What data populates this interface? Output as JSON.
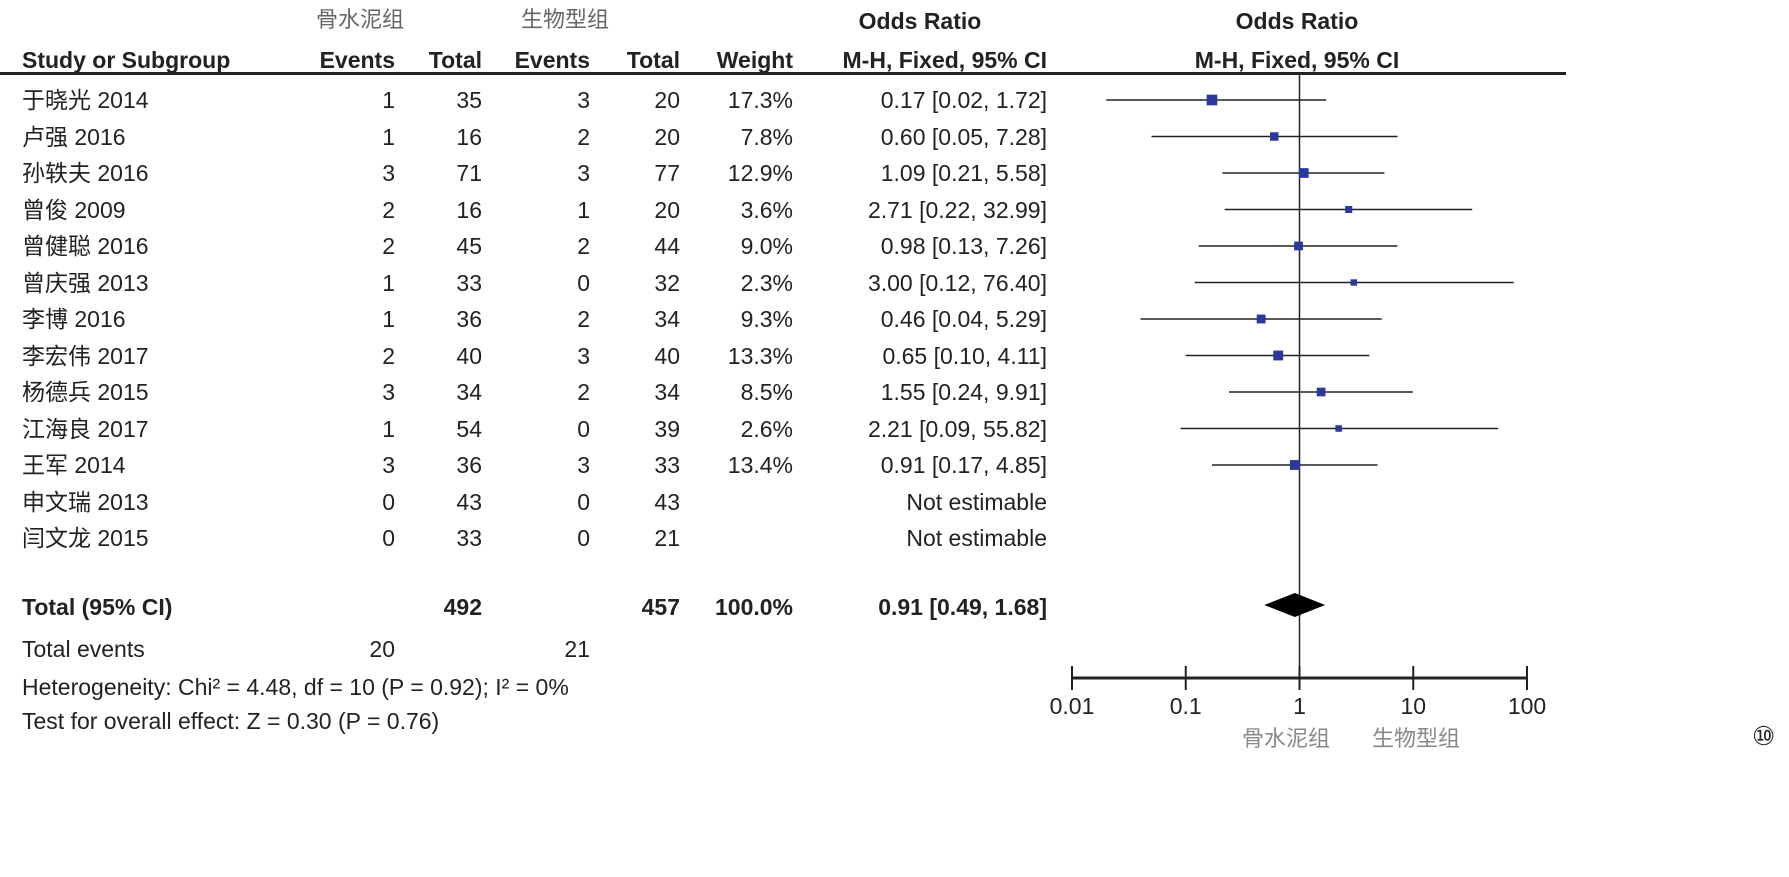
{
  "chart_data": {
    "type": "forest",
    "title": "Odds Ratio",
    "subtitle": "M-H, Fixed, 95% CI",
    "group_labels": [
      "骨水泥组",
      "生物型组"
    ],
    "columns": [
      "Study or Subgroup",
      "Events",
      "Total",
      "Events",
      "Total",
      "Weight",
      "M-H, Fixed, 95% CI"
    ],
    "or_header": "Odds Ratio",
    "x_scale": "log",
    "xlim": [
      0.01,
      100
    ],
    "x_ticks": [
      "0.01",
      "0.1",
      "1",
      "10",
      "100"
    ],
    "x_footer": [
      "骨水泥组",
      "生物型组"
    ],
    "studies": [
      {
        "name": "于晓光 2014",
        "e1": "1",
        "t1": "35",
        "e2": "3",
        "t2": "20",
        "weight": "17.3%",
        "ci_text": "0.17 [0.02, 1.72]",
        "or": 0.17,
        "lo": 0.02,
        "hi": 1.72,
        "w": 17.3
      },
      {
        "name": "卢强 2016",
        "e1": "1",
        "t1": "16",
        "e2": "2",
        "t2": "20",
        "weight": "7.8%",
        "ci_text": "0.60 [0.05, 7.28]",
        "or": 0.6,
        "lo": 0.05,
        "hi": 7.28,
        "w": 7.8
      },
      {
        "name": "孙轶夫 2016",
        "e1": "3",
        "t1": "71",
        "e2": "3",
        "t2": "77",
        "weight": "12.9%",
        "ci_text": "1.09 [0.21, 5.58]",
        "or": 1.09,
        "lo": 0.21,
        "hi": 5.58,
        "w": 12.9
      },
      {
        "name": "曾俊 2009",
        "e1": "2",
        "t1": "16",
        "e2": "1",
        "t2": "20",
        "weight": "3.6%",
        "ci_text": "2.71 [0.22, 32.99]",
        "or": 2.71,
        "lo": 0.22,
        "hi": 32.99,
        "w": 3.6
      },
      {
        "name": "曾健聪 2016",
        "e1": "2",
        "t1": "45",
        "e2": "2",
        "t2": "44",
        "weight": "9.0%",
        "ci_text": "0.98 [0.13, 7.26]",
        "or": 0.98,
        "lo": 0.13,
        "hi": 7.26,
        "w": 9.0
      },
      {
        "name": "曾庆强 2013",
        "e1": "1",
        "t1": "33",
        "e2": "0",
        "t2": "32",
        "weight": "2.3%",
        "ci_text": "3.00 [0.12, 76.40]",
        "or": 3.0,
        "lo": 0.12,
        "hi": 76.4,
        "w": 2.3
      },
      {
        "name": "李博 2016",
        "e1": "1",
        "t1": "36",
        "e2": "2",
        "t2": "34",
        "weight": "9.3%",
        "ci_text": "0.46 [0.04, 5.29]",
        "or": 0.46,
        "lo": 0.04,
        "hi": 5.29,
        "w": 9.3
      },
      {
        "name": "李宏伟 2017",
        "e1": "2",
        "t1": "40",
        "e2": "3",
        "t2": "40",
        "weight": "13.3%",
        "ci_text": "0.65 [0.10, 4.11]",
        "or": 0.65,
        "lo": 0.1,
        "hi": 4.11,
        "w": 13.3
      },
      {
        "name": "杨德兵 2015",
        "e1": "3",
        "t1": "34",
        "e2": "2",
        "t2": "34",
        "weight": "8.5%",
        "ci_text": "1.55 [0.24, 9.91]",
        "or": 1.55,
        "lo": 0.24,
        "hi": 9.91,
        "w": 8.5
      },
      {
        "name": "江海良 2017",
        "e1": "1",
        "t1": "54",
        "e2": "0",
        "t2": "39",
        "weight": "2.6%",
        "ci_text": "2.21 [0.09, 55.82]",
        "or": 2.21,
        "lo": 0.09,
        "hi": 55.82,
        "w": 2.6
      },
      {
        "name": "王军 2014",
        "e1": "3",
        "t1": "36",
        "e2": "3",
        "t2": "33",
        "weight": "13.4%",
        "ci_text": "0.91 [0.17, 4.85]",
        "or": 0.91,
        "lo": 0.17,
        "hi": 4.85,
        "w": 13.4
      },
      {
        "name": "申文瑞 2013",
        "e1": "0",
        "t1": "43",
        "e2": "0",
        "t2": "43",
        "weight": "",
        "ci_text": "Not estimable",
        "or": null,
        "lo": null,
        "hi": null,
        "w": 0
      },
      {
        "name": "闫文龙 2015",
        "e1": "0",
        "t1": "33",
        "e2": "0",
        "t2": "21",
        "weight": "",
        "ci_text": "Not estimable",
        "or": null,
        "lo": null,
        "hi": null,
        "w": 0
      }
    ],
    "total": {
      "name": "Total (95% CI)",
      "t1": "492",
      "t2": "457",
      "weight": "100.0%",
      "ci_text": "0.91 [0.49, 1.68]",
      "or": 0.91,
      "lo": 0.49,
      "hi": 1.68
    },
    "total_events": {
      "label": "Total events",
      "e1": "20",
      "e2": "21"
    },
    "heterogeneity": "Heterogeneity: Chi² = 4.48, df = 10 (P = 0.92); I² = 0%",
    "overall_effect": "Test for overall effect: Z = 0.30 (P = 0.76)",
    "figure_label": "⑩",
    "colors": {
      "square": "#2b3a9a",
      "line": "#222222",
      "diamond": "#000000",
      "footer": "#888888"
    }
  }
}
